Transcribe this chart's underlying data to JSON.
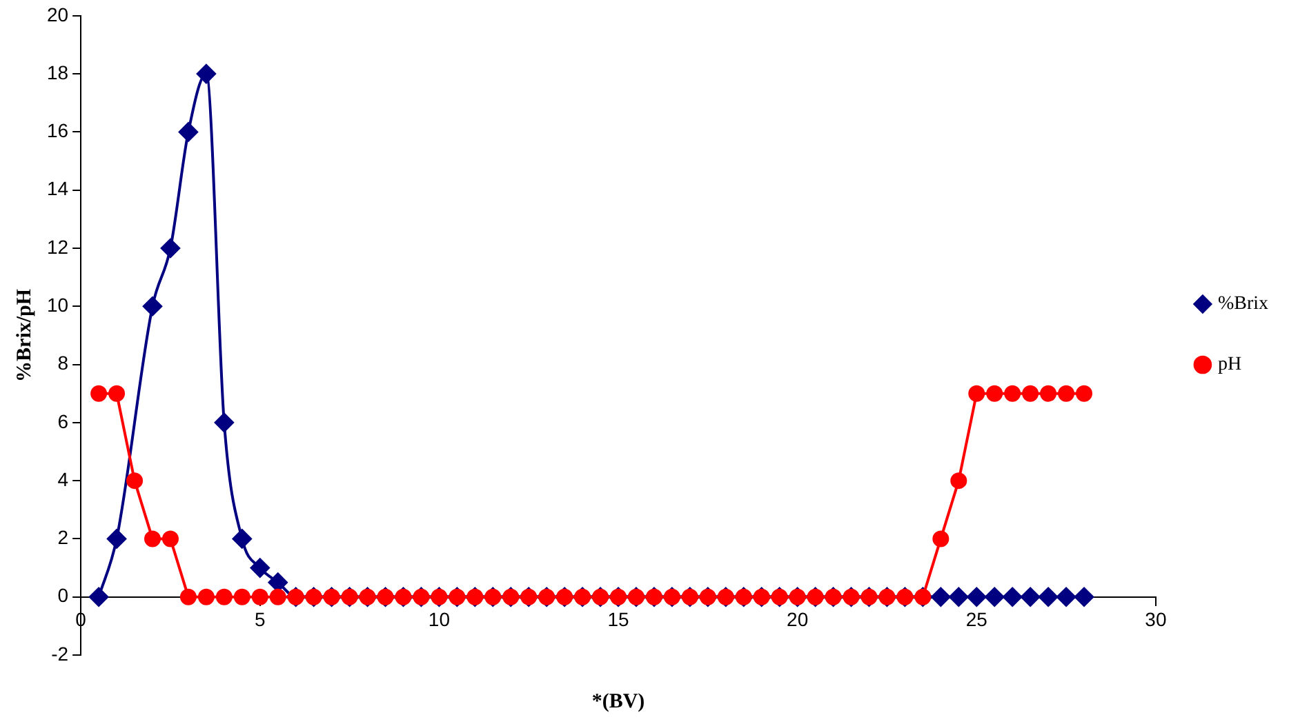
{
  "chart_data": {
    "type": "line",
    "xlabel": "*(BV)",
    "ylabel": "%Brix/pH",
    "x": [
      0.5,
      1,
      1.5,
      2,
      2.5,
      3,
      3.5,
      4,
      4.5,
      5,
      5.5,
      6,
      6.5,
      7,
      7.5,
      8,
      8.5,
      9,
      9.5,
      10,
      10.5,
      11,
      11.5,
      12,
      12.5,
      13,
      13.5,
      14,
      14.5,
      15,
      15.5,
      16,
      16.5,
      17,
      17.5,
      18,
      18.5,
      19,
      19.5,
      20,
      20.5,
      21,
      21.5,
      22,
      22.5,
      23,
      23.5,
      24,
      24.5,
      25,
      25.5,
      26,
      26.5,
      27,
      27.5,
      28
    ],
    "series": [
      {
        "name": "%Brix",
        "color": "#000080",
        "marker": "diamond",
        "values": [
          0,
          2,
          null,
          10,
          12,
          16,
          18,
          6,
          2,
          1,
          0.5,
          0,
          0,
          0,
          0,
          0,
          0,
          0,
          0,
          0,
          0,
          0,
          0,
          0,
          0,
          0,
          0,
          0,
          0,
          0,
          0,
          0,
          0,
          0,
          0,
          0,
          0,
          0,
          0,
          0,
          0,
          0,
          0,
          0,
          0,
          0,
          0,
          0,
          0,
          0,
          0,
          0,
          0,
          0,
          0,
          0
        ]
      },
      {
        "name": "pH",
        "color": "#ff0000",
        "marker": "circle",
        "values": [
          7,
          7,
          4,
          2,
          2,
          0,
          0,
          0,
          0,
          0,
          0,
          0,
          0,
          0,
          0,
          0,
          0,
          0,
          0,
          0,
          0,
          0,
          0,
          0,
          0,
          0,
          0,
          0,
          0,
          0,
          0,
          0,
          0,
          0,
          0,
          0,
          0,
          0,
          0,
          0,
          0,
          0,
          0,
          0,
          0,
          0,
          0,
          2,
          4,
          7,
          7,
          7,
          7,
          7,
          7,
          7
        ]
      }
    ],
    "xlim": [
      0,
      30
    ],
    "xticks": [
      0,
      5,
      10,
      15,
      20,
      25,
      30
    ],
    "ylim": [
      -2,
      20
    ],
    "yticks": [
      -2,
      0,
      2,
      4,
      6,
      8,
      10,
      12,
      14,
      16,
      18,
      20
    ],
    "grid": false,
    "legend": "right",
    "line_style": "solid"
  }
}
